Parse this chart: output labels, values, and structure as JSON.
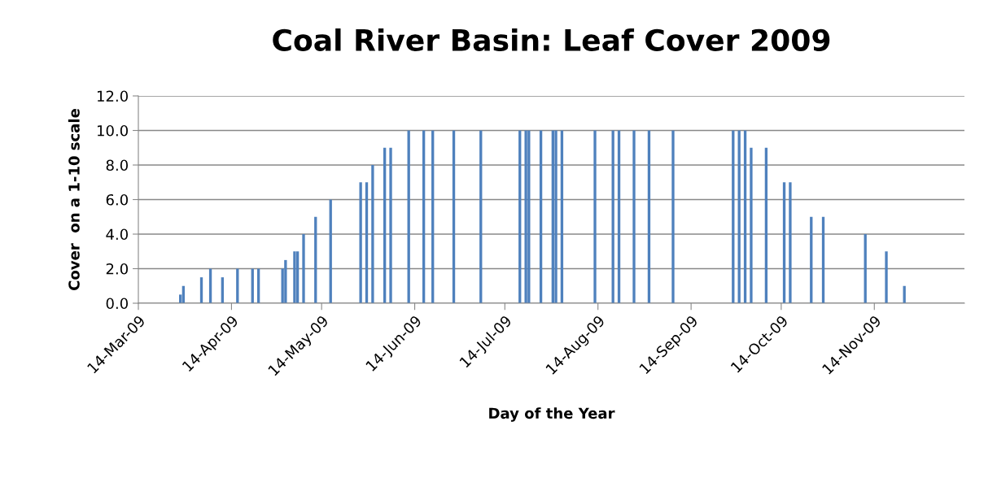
{
  "chart_data": {
    "type": "bar",
    "title": "Coal River Basin: Leaf Cover 2009",
    "xlabel": "Day of the Year",
    "ylabel": "Cover  on a 1-10 scale",
    "x": [
      "2009-03-28",
      "2009-03-29",
      "2009-04-04",
      "2009-04-07",
      "2009-04-11",
      "2009-04-16",
      "2009-04-21",
      "2009-04-23",
      "2009-05-01",
      "2009-05-02",
      "2009-05-05",
      "2009-05-06",
      "2009-05-08",
      "2009-05-12",
      "2009-05-17",
      "2009-05-27",
      "2009-05-29",
      "2009-05-31",
      "2009-06-04",
      "2009-06-06",
      "2009-06-12",
      "2009-06-17",
      "2009-06-20",
      "2009-06-27",
      "2009-07-06",
      "2009-07-19",
      "2009-07-21",
      "2009-07-22",
      "2009-07-26",
      "2009-07-30",
      "2009-07-31",
      "2009-08-02",
      "2009-08-13",
      "2009-08-19",
      "2009-08-21",
      "2009-08-26",
      "2009-08-31",
      "2009-09-08",
      "2009-09-28",
      "2009-09-30",
      "2009-10-02",
      "2009-10-04",
      "2009-10-09",
      "2009-10-15",
      "2009-10-17",
      "2009-10-24",
      "2009-10-28",
      "2009-11-11",
      "2009-11-18",
      "2009-11-24"
    ],
    "values": [
      0.5,
      1.0,
      1.5,
      2.0,
      1.5,
      2.0,
      2.0,
      2.0,
      2.0,
      2.5,
      3.0,
      3.0,
      4.0,
      5.0,
      6.0,
      7.0,
      7.0,
      8.0,
      9.0,
      9.0,
      10.0,
      10.0,
      10.0,
      10.0,
      10.0,
      10.0,
      10.0,
      10.0,
      10.0,
      10.0,
      10.0,
      10.0,
      10.0,
      10.0,
      10.0,
      10.0,
      10.0,
      10.0,
      10.0,
      10.0,
      10.0,
      9.0,
      9.0,
      7.0,
      7.0,
      5.0,
      5.0,
      4.0,
      3.0,
      1.0
    ],
    "color": "#4f81bd",
    "xlim": [
      "2009-03-14",
      "2009-12-14"
    ],
    "xticks": [
      {
        "value": "2009-03-14",
        "label": "14-Mar-09"
      },
      {
        "value": "2009-04-14",
        "label": "14-Apr-09"
      },
      {
        "value": "2009-05-14",
        "label": "14-May-09"
      },
      {
        "value": "2009-06-14",
        "label": "14-Jun-09"
      },
      {
        "value": "2009-07-14",
        "label": "14-Jul-09"
      },
      {
        "value": "2009-08-14",
        "label": "14-Aug-09"
      },
      {
        "value": "2009-09-14",
        "label": "14-Sep-09"
      },
      {
        "value": "2009-10-14",
        "label": "14-Oct-09"
      },
      {
        "value": "2009-11-14",
        "label": "14-Nov-09"
      }
    ],
    "ylim": [
      0,
      12
    ],
    "yticks": [
      {
        "value": 0,
        "label": "0.0"
      },
      {
        "value": 2,
        "label": "2.0"
      },
      {
        "value": 4,
        "label": "4.0"
      },
      {
        "value": 6,
        "label": "6.0"
      },
      {
        "value": 8,
        "label": "8.0"
      },
      {
        "value": 10,
        "label": "10.0"
      },
      {
        "value": 12,
        "label": "12.0"
      }
    ],
    "grid": "y"
  }
}
